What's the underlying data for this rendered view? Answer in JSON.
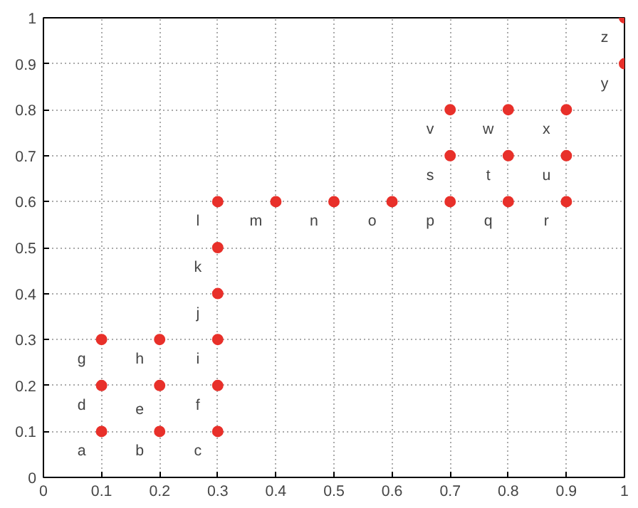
{
  "chart_data": {
    "type": "scatter",
    "marker": "circle",
    "grid": true,
    "xlim": [
      0,
      1
    ],
    "ylim": [
      0,
      1
    ],
    "xticks": [
      0,
      0.1,
      0.2,
      0.3,
      0.4,
      0.5,
      0.6,
      0.7,
      0.8,
      0.9,
      1
    ],
    "yticks": [
      0,
      0.1,
      0.2,
      0.3,
      0.4,
      0.5,
      0.6,
      0.7,
      0.8,
      0.9,
      1
    ],
    "x": [
      0.1,
      0.2,
      0.3,
      0.1,
      0.2,
      0.3,
      0.1,
      0.2,
      0.3,
      0.3,
      0.3,
      0.3,
      0.4,
      0.5,
      0.6,
      0.7,
      0.8,
      0.9,
      0.7,
      0.8,
      0.9,
      0.7,
      0.8,
      0.9,
      1,
      1
    ],
    "series": [
      {
        "color": "#e8302a",
        "values": [
          0.1,
          0.1,
          0.1,
          0.2,
          0.2,
          0.2,
          0.3,
          0.3,
          0.3,
          0.4,
          0.5,
          0.6,
          0.6,
          0.6,
          0.6,
          0.6,
          0.6,
          0.6,
          0.7,
          0.7,
          0.7,
          0.8,
          0.8,
          0.8,
          0.9,
          1
        ]
      }
    ],
    "annotations": [
      {
        "text": "a",
        "x": 0.1,
        "y": 0.1
      },
      {
        "text": "b",
        "x": 0.2,
        "y": 0.1
      },
      {
        "text": "c",
        "x": 0.3,
        "y": 0.1
      },
      {
        "text": "d",
        "x": 0.1,
        "y": 0.2
      },
      {
        "text": "e",
        "x": 0.2,
        "y": 0.2
      },
      {
        "text": "f",
        "x": 0.3,
        "y": 0.2
      },
      {
        "text": "g",
        "x": 0.1,
        "y": 0.3
      },
      {
        "text": "h",
        "x": 0.2,
        "y": 0.3
      },
      {
        "text": "i",
        "x": 0.3,
        "y": 0.3
      },
      {
        "text": "j",
        "x": 0.3,
        "y": 0.4
      },
      {
        "text": "k",
        "x": 0.3,
        "y": 0.5
      },
      {
        "text": "l",
        "x": 0.3,
        "y": 0.6
      },
      {
        "text": "m",
        "x": 0.4,
        "y": 0.6
      },
      {
        "text": "n",
        "x": 0.5,
        "y": 0.6
      },
      {
        "text": "o",
        "x": 0.6,
        "y": 0.6
      },
      {
        "text": "p",
        "x": 0.7,
        "y": 0.6
      },
      {
        "text": "q",
        "x": 0.8,
        "y": 0.6
      },
      {
        "text": "r",
        "x": 0.9,
        "y": 0.6
      },
      {
        "text": "s",
        "x": 0.7,
        "y": 0.7
      },
      {
        "text": "t",
        "x": 0.8,
        "y": 0.7
      },
      {
        "text": "u",
        "x": 0.9,
        "y": 0.7
      },
      {
        "text": "v",
        "x": 0.7,
        "y": 0.8
      },
      {
        "text": "w",
        "x": 0.8,
        "y": 0.8
      },
      {
        "text": "x",
        "x": 0.9,
        "y": 0.8
      },
      {
        "text": "y",
        "x": 1,
        "y": 0.9
      },
      {
        "text": "z",
        "x": 1,
        "y": 1
      }
    ]
  }
}
